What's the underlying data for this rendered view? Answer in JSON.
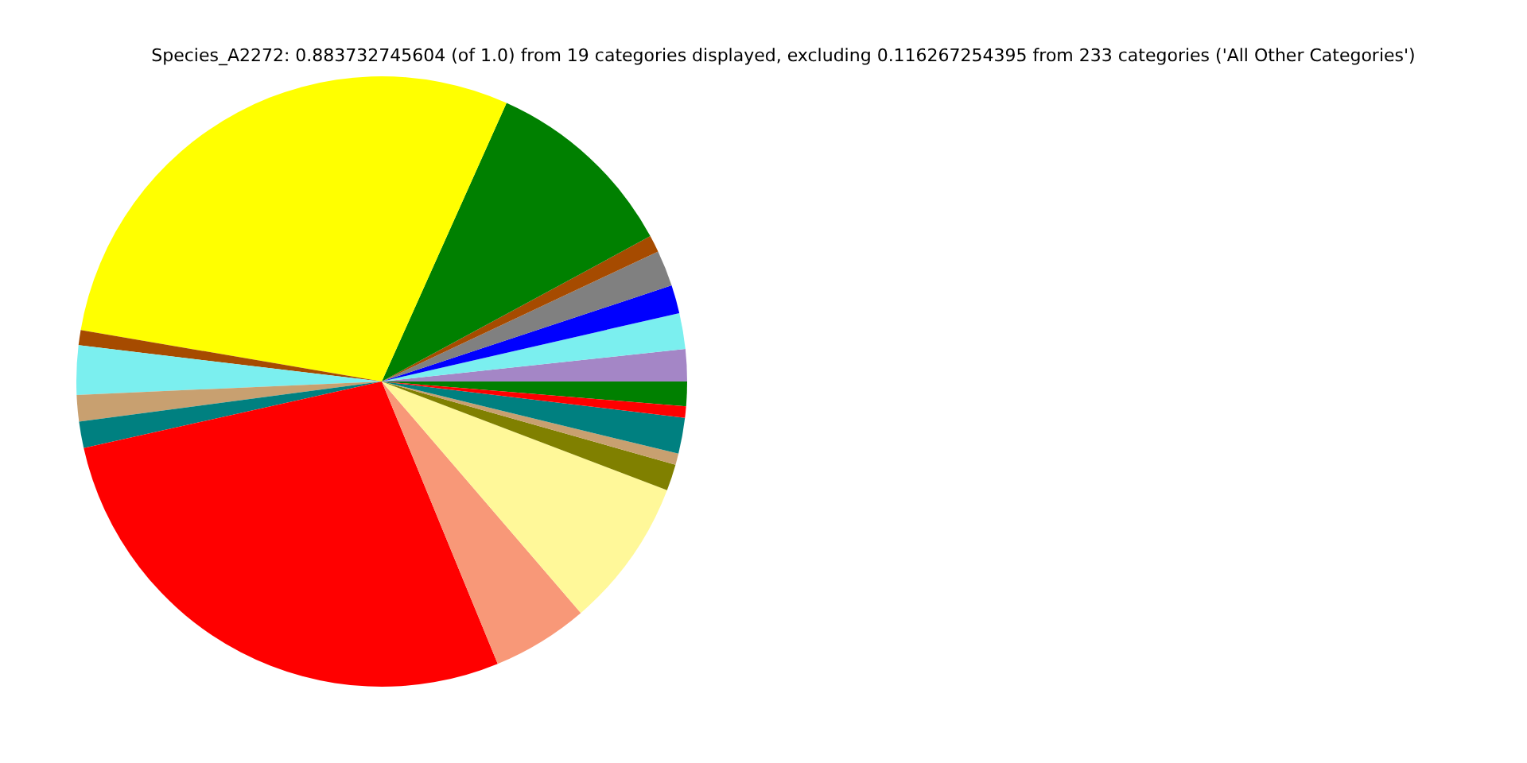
{
  "chart_data": {
    "type": "pie",
    "title": "Species_A2272: 0.883732745604 (of 1.0) from 19 categories displayed, excluding 0.116267254395 from 233 categories ('All Other Categories')",
    "categories": [
      null,
      null,
      null,
      null,
      null,
      null,
      null,
      null,
      null,
      null,
      null,
      null,
      null,
      null,
      null,
      null,
      null,
      null,
      null
    ],
    "values": [
      1.3,
      1.7,
      1.9,
      1.5,
      1.9,
      0.9,
      10.4,
      29.0,
      0.8,
      2.6,
      1.4,
      1.4,
      27.7,
      5.1,
      7.9,
      1.4,
      0.6,
      1.9,
      0.6
    ],
    "colors": [
      "#008000",
      "#a486c6",
      "#7befef",
      "#0000ff",
      "#808080",
      "#a64b00",
      "#008000",
      "#ffff00",
      "#a64b00",
      "#7befef",
      "#c8a070",
      "#008080",
      "#ff0000",
      "#f89878",
      "#fff899",
      "#808000",
      "#c8a070",
      "#008080",
      "#ff0000"
    ],
    "legend": false
  }
}
